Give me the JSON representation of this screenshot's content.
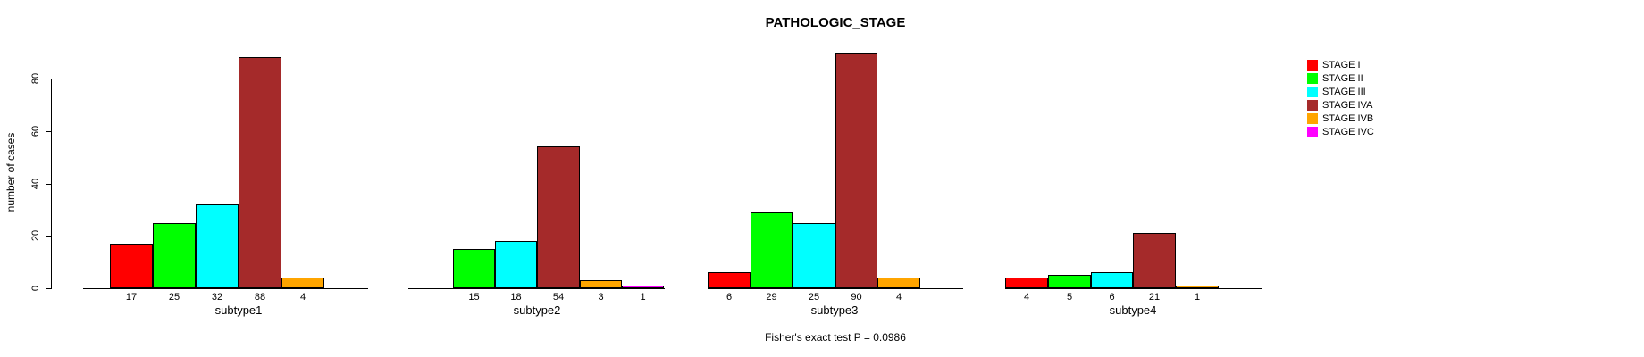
{
  "title": "PATHOLOGIC_STAGE",
  "y_axis": {
    "label": "number of cases",
    "ticks": [
      0,
      20,
      40,
      60,
      80
    ]
  },
  "footer": "Fisher's exact test P = 0.0986",
  "legend": {
    "items": [
      {
        "label": "STAGE I",
        "color": "#FF0000"
      },
      {
        "label": "STAGE II",
        "color": "#00FF00"
      },
      {
        "label": "STAGE III",
        "color": "#00FFFF"
      },
      {
        "label": "STAGE IVA",
        "color": "#A52A2A"
      },
      {
        "label": "STAGE IVB",
        "color": "#FFA500"
      },
      {
        "label": "STAGE IVC",
        "color": "#FF00FF"
      }
    ]
  },
  "chart_data": {
    "type": "bar",
    "title": "PATHOLOGIC_STAGE",
    "ylabel": "number of cases",
    "ylim": [
      0,
      93
    ],
    "yticks": [
      0,
      20,
      40,
      60,
      80
    ],
    "grid": false,
    "legend_position": "right",
    "colors": {
      "STAGE I": "#FF0000",
      "STAGE II": "#00FF00",
      "STAGE III": "#00FFFF",
      "STAGE IVA": "#A52A2A",
      "STAGE IVB": "#FFA500",
      "STAGE IVC": "#FF00FF"
    },
    "annotation": "Fisher's exact test P = 0.0986",
    "groups": [
      {
        "label": "subtype1",
        "bars": [
          {
            "stage": "STAGE I",
            "value": 17
          },
          {
            "stage": "STAGE II",
            "value": 25
          },
          {
            "stage": "STAGE III",
            "value": 32
          },
          {
            "stage": "STAGE IVA",
            "value": 88
          },
          {
            "stage": "STAGE IVB",
            "value": 4
          }
        ]
      },
      {
        "label": "subtype2",
        "bars": [
          {
            "stage": "STAGE II",
            "value": 15
          },
          {
            "stage": "STAGE III",
            "value": 18
          },
          {
            "stage": "STAGE IVA",
            "value": 54
          },
          {
            "stage": "STAGE IVB",
            "value": 3
          },
          {
            "stage": "STAGE IVC",
            "value": 1
          }
        ]
      },
      {
        "label": "subtype3",
        "bars": [
          {
            "stage": "STAGE I",
            "value": 6
          },
          {
            "stage": "STAGE II",
            "value": 29
          },
          {
            "stage": "STAGE III",
            "value": 25
          },
          {
            "stage": "STAGE IVA",
            "value": 90
          },
          {
            "stage": "STAGE IVB",
            "value": 4
          }
        ]
      },
      {
        "label": "subtype4",
        "bars": [
          {
            "stage": "STAGE I",
            "value": 4
          },
          {
            "stage": "STAGE II",
            "value": 5
          },
          {
            "stage": "STAGE III",
            "value": 6
          },
          {
            "stage": "STAGE IVA",
            "value": 21
          },
          {
            "stage": "STAGE IVB",
            "value": 1
          }
        ]
      }
    ]
  }
}
